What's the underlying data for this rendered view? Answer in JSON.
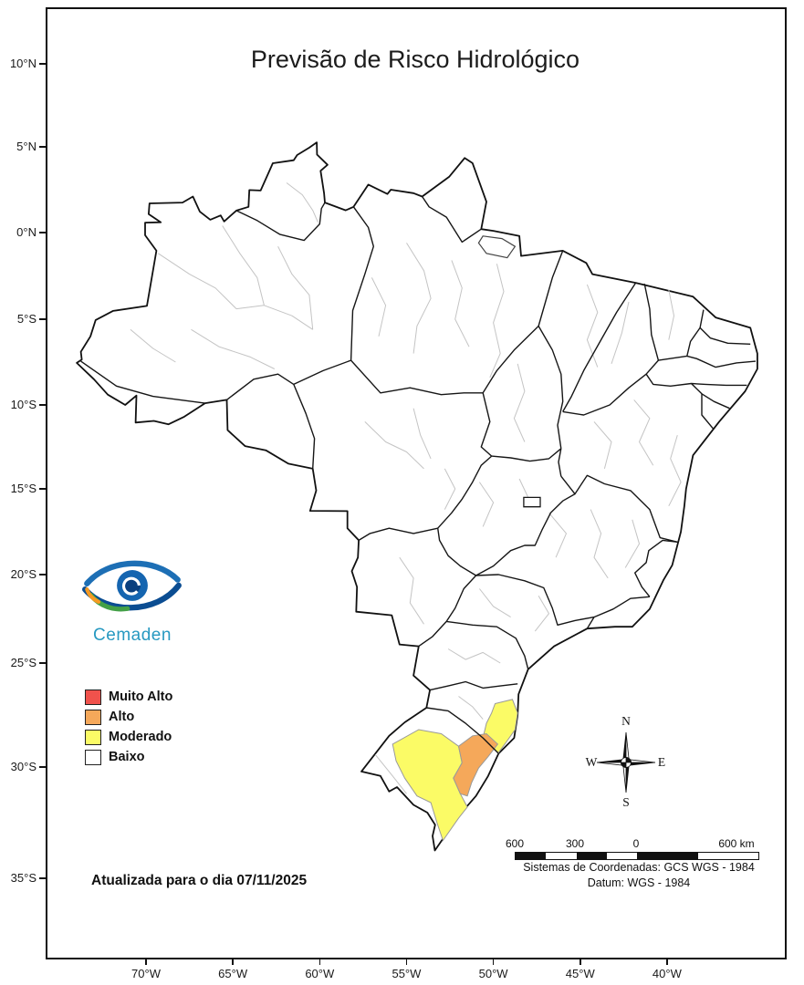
{
  "title": "Previsão de Risco Hidrológico",
  "logo": {
    "text": "Cemaden"
  },
  "legend": {
    "items": [
      {
        "label": "Muito Alto",
        "color": "#f0524c"
      },
      {
        "label": "Alto",
        "color": "#f5a85a"
      },
      {
        "label": "Moderado",
        "color": "#fbfb66"
      },
      {
        "label": "Baixo",
        "color": "#ffffff"
      }
    ]
  },
  "update_note": "Atualizada para o dia 07/11/2025",
  "compass": {
    "north": "N",
    "south": "S",
    "east": "E",
    "west": "W"
  },
  "scale_bar": {
    "labels": [
      "600",
      "300",
      "0",
      "600 km"
    ]
  },
  "coordinate_system": {
    "line1": "Sistemas de Coordenadas: GCS WGS - 1984",
    "line2": "Datum: WGS - 1984"
  },
  "axes": {
    "latitude_labels": [
      "10°N",
      "5°N",
      "0°N",
      "5°S",
      "10°S",
      "15°S",
      "20°S",
      "25°S",
      "30°S",
      "35°S"
    ],
    "longitude_labels": [
      "70°W",
      "65°W",
      "60°W",
      "55°W",
      "50°W",
      "45°W",
      "40°W"
    ]
  },
  "map_colors": {
    "outline": "#111111",
    "meso_boundary": "#c4c4c4",
    "land": "#ffffff"
  }
}
